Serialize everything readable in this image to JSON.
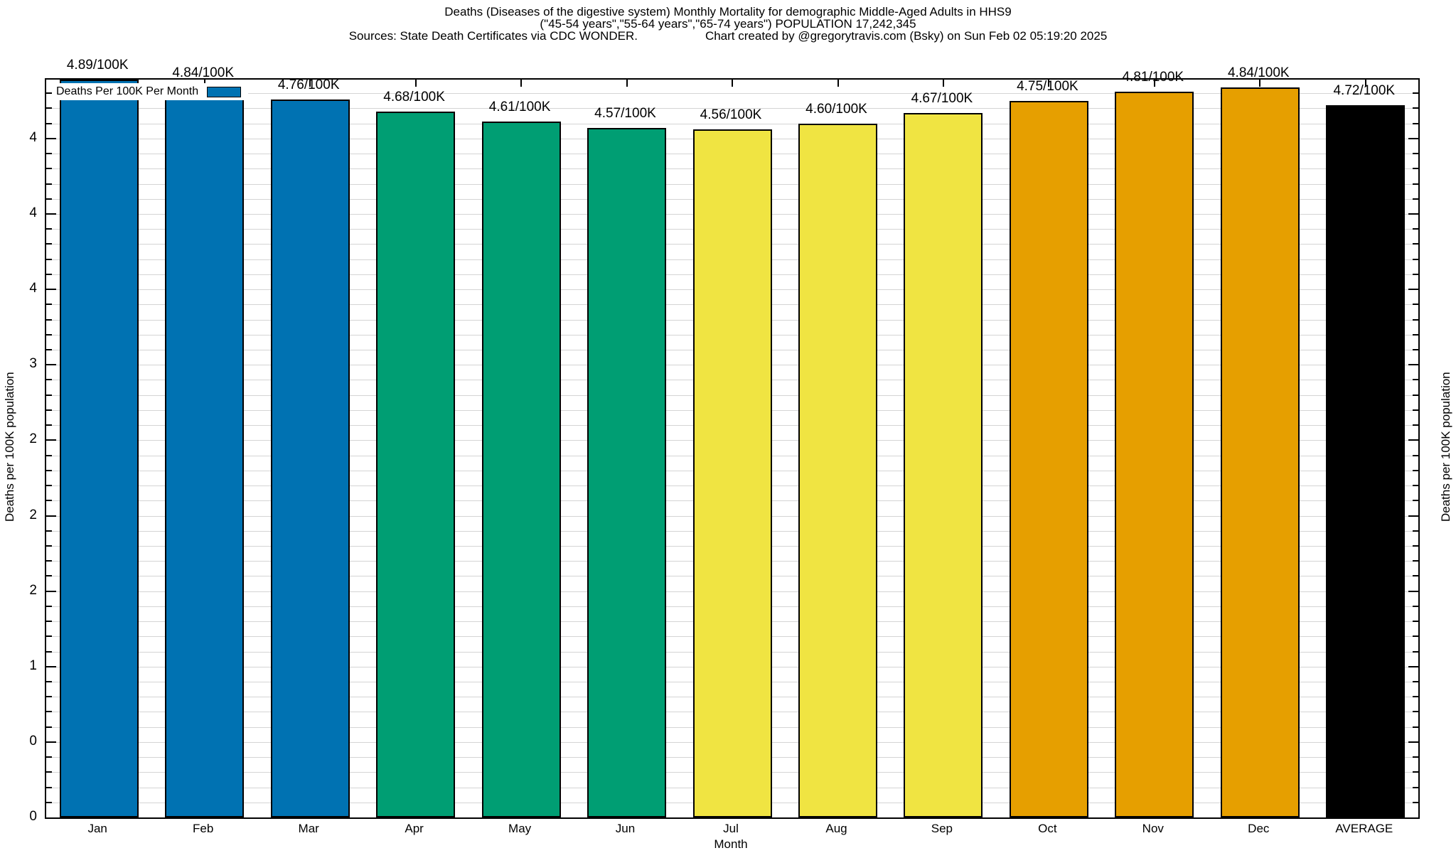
{
  "title": {
    "line1": "Deaths (Diseases of the digestive system) Monthly Mortality for demographic Middle-Aged Adults in HHS9",
    "line2": "(\"45-54 years\",\"55-64 years\",\"65-74 years\") POPULATION 17,242,345",
    "line3_left": "Sources: State Death Certificates via CDC WONDER.",
    "line3_right": "Chart created by @gregorytravis.com (Bsky) on Sun Feb 02 05:19:20 2025"
  },
  "legend": {
    "label": "Deaths Per 100K Per Month",
    "swatch_color": "#0072B2"
  },
  "axes": {
    "xlabel": "Month",
    "ylabel_left": "Deaths per 100K population",
    "ylabel_right": "Deaths per 100K population",
    "ymax": 4.89,
    "minor_step": 0.1,
    "yticks": [
      {
        "v": 0.0,
        "label": "0"
      },
      {
        "v": 0.5,
        "label": "0"
      },
      {
        "v": 1.0,
        "label": "1"
      },
      {
        "v": 1.5,
        "label": "2"
      },
      {
        "v": 2.0,
        "label": "2"
      },
      {
        "v": 2.5,
        "label": "2"
      },
      {
        "v": 3.0,
        "label": "3"
      },
      {
        "v": 3.5,
        "label": "4"
      },
      {
        "v": 4.0,
        "label": "4"
      },
      {
        "v": 4.5,
        "label": "4"
      }
    ]
  },
  "colors": {
    "blue": "#0072B2",
    "green": "#009E73",
    "yellow": "#F0E442",
    "orange": "#E69F00",
    "black": "#000000",
    "grid": "#d4d4d4"
  },
  "chart_data": {
    "type": "bar",
    "title": "Deaths (Diseases of the digestive system) Monthly Mortality for demographic Middle-Aged Adults in HHS9 (\"45-54 years\",\"55-64 years\",\"65-74 years\") POPULATION 17,242,345",
    "xlabel": "Month",
    "ylabel": "Deaths per 100K population",
    "ylim": [
      0,
      4.89
    ],
    "grid": true,
    "legend_label": "Deaths Per 100K Per Month",
    "legend_position": "top-left",
    "categories": [
      "Jan",
      "Feb",
      "Mar",
      "Apr",
      "May",
      "Jun",
      "Jul",
      "Aug",
      "Sep",
      "Oct",
      "Nov",
      "Dec",
      "AVERAGE"
    ],
    "values": [
      4.89,
      4.84,
      4.76,
      4.68,
      4.61,
      4.57,
      4.56,
      4.6,
      4.67,
      4.75,
      4.81,
      4.84,
      4.72
    ],
    "bar_labels": [
      "4.89/100K",
      "4.84/100K",
      "4.76/100K",
      "4.68/100K",
      "4.61/100K",
      "4.57/100K",
      "4.56/100K",
      "4.60/100K",
      "4.67/100K",
      "4.75/100K",
      "4.81/100K",
      "4.84/100K",
      "4.72/100K"
    ],
    "bar_colors": [
      "#0072B2",
      "#0072B2",
      "#0072B2",
      "#009E73",
      "#009E73",
      "#009E73",
      "#F0E442",
      "#F0E442",
      "#F0E442",
      "#E69F00",
      "#E69F00",
      "#E69F00",
      "#000000"
    ]
  }
}
